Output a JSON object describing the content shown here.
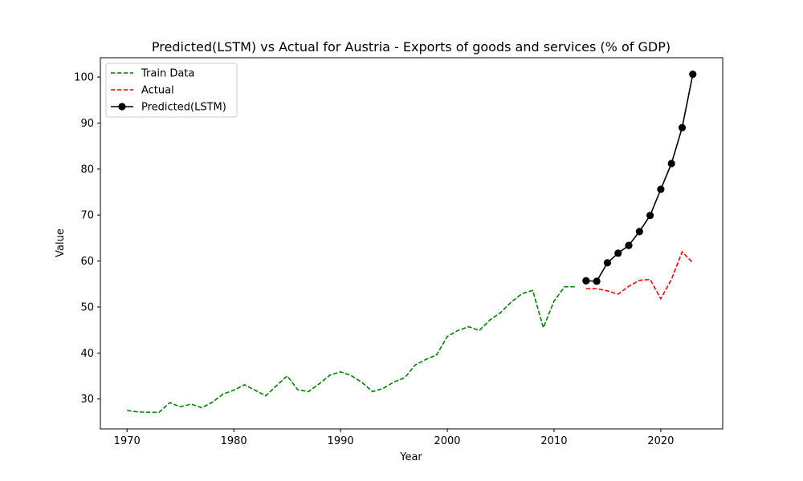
{
  "chart_data": {
    "type": "line",
    "title": "Predicted(LSTM) vs Actual for Austria - Exports of goods and services (% of GDP)",
    "xlabel": "Year",
    "ylabel": "Value",
    "xlim": [
      1967.5,
      2025.8
    ],
    "ylim": [
      23.5,
      104.2
    ],
    "xticks": [
      1970,
      1980,
      1990,
      2000,
      2010,
      2020
    ],
    "yticks": [
      30,
      40,
      50,
      60,
      70,
      80,
      90,
      100
    ],
    "grid": false,
    "legend_position": "top-left",
    "series": [
      {
        "name": "Train Data",
        "color": "#008000",
        "style": "dashed",
        "marker": "none",
        "x": [
          1970,
          1971,
          1972,
          1973,
          1974,
          1975,
          1976,
          1977,
          1978,
          1979,
          1980,
          1981,
          1982,
          1983,
          1984,
          1985,
          1986,
          1987,
          1988,
          1989,
          1990,
          1991,
          1992,
          1993,
          1994,
          1995,
          1996,
          1997,
          1998,
          1999,
          2000,
          2001,
          2002,
          2003,
          2004,
          2005,
          2006,
          2007,
          2008,
          2009,
          2010,
          2011,
          2012
        ],
        "y": [
          27.5,
          27.2,
          27.1,
          27.1,
          29.2,
          28.3,
          28.9,
          28.1,
          29.3,
          31.1,
          31.9,
          33.1,
          31.9,
          30.7,
          32.9,
          35.0,
          32.0,
          31.6,
          33.3,
          35.2,
          35.9,
          35.1,
          33.6,
          31.6,
          32.3,
          33.7,
          34.6,
          37.4,
          38.6,
          39.6,
          43.6,
          44.9,
          45.7,
          44.9,
          47.2,
          48.8,
          51.1,
          52.9,
          53.6,
          45.5,
          51.3,
          54.4,
          54.4
        ]
      },
      {
        "name": "Actual",
        "color": "#ff0000",
        "style": "dashed",
        "marker": "none",
        "x": [
          2013,
          2014,
          2015,
          2016,
          2017,
          2018,
          2019,
          2020,
          2021,
          2022,
          2023
        ],
        "y": [
          54.0,
          54.0,
          53.5,
          52.8,
          54.5,
          55.8,
          56.0,
          51.8,
          56.0,
          62.0,
          59.6
        ]
      },
      {
        "name": "Predicted(LSTM)",
        "color": "#000000",
        "style": "solid",
        "marker": "circle",
        "x": [
          2013,
          2014,
          2015,
          2016,
          2017,
          2018,
          2019,
          2020,
          2021,
          2022,
          2023
        ],
        "y": [
          55.7,
          55.6,
          59.6,
          61.7,
          63.4,
          66.4,
          69.9,
          75.6,
          81.2,
          89.0,
          100.6
        ]
      }
    ]
  }
}
